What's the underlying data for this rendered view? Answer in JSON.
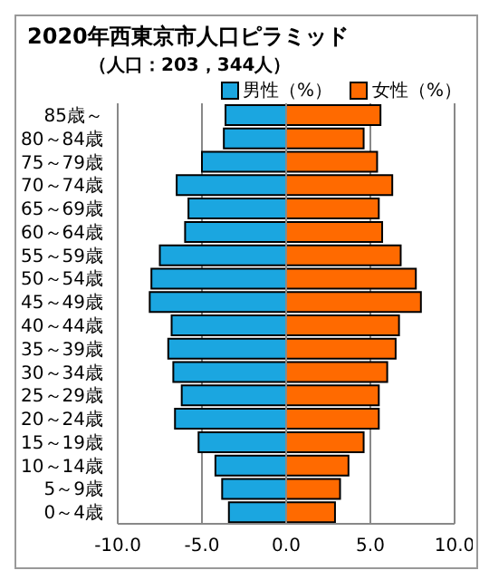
{
  "chart_data": {
    "type": "bar",
    "orientation": "horizontal",
    "stacked": true,
    "title": "2020年西東京市人口ピラミッド",
    "subtitle": "（人口：203，344人）",
    "categories": [
      "85歳～",
      "80～84歳",
      "75～79歳",
      "70～74歳",
      "65～69歳",
      "60～64歳",
      "55～59歳",
      "50～54歳",
      "45～49歳",
      "40～44歳",
      "35～39歳",
      "30～34歳",
      "25～29歳",
      "20～24歳",
      "15～19歳",
      "10～14歳",
      "5～9歳",
      "0～4歳"
    ],
    "series": [
      {
        "name": "男性（%）",
        "color": "#1ba6e0",
        "values": [
          -3.6,
          -3.7,
          -5.0,
          -6.5,
          -5.8,
          -6.0,
          -7.5,
          -8.0,
          -8.1,
          -6.8,
          -7.0,
          -6.7,
          -6.2,
          -6.6,
          -5.2,
          -4.2,
          -3.8,
          -3.4
        ]
      },
      {
        "name": "女性（%）",
        "color": "#ff6a00",
        "values": [
          5.6,
          4.6,
          5.4,
          6.3,
          5.5,
          5.7,
          6.8,
          7.7,
          8.0,
          6.7,
          6.5,
          6.0,
          5.5,
          5.5,
          4.6,
          3.7,
          3.2,
          2.9
        ]
      }
    ],
    "xlim": [
      -10,
      10
    ],
    "xticks": [
      {
        "value": -10,
        "label": "-10.0"
      },
      {
        "value": -5,
        "label": "-5.0"
      },
      {
        "value": 0,
        "label": "0.0"
      },
      {
        "value": 5,
        "label": "5.0"
      },
      {
        "value": 10,
        "label": "10.0"
      }
    ],
    "grid": "x",
    "legend": "top right"
  }
}
